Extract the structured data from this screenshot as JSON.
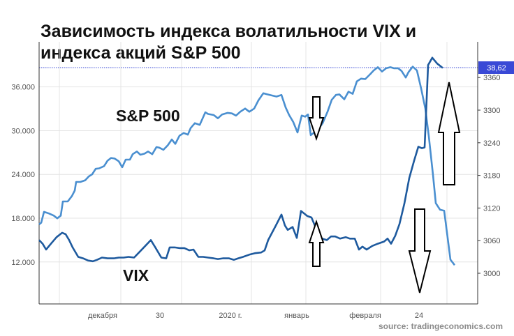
{
  "chart_data": {
    "type": "line",
    "title": "Зависимость индекса волатильности VIX и индекса акций S&P 500",
    "source": "source: tradingeconomics.com",
    "x_tick_labels": [
      "декабря",
      "30",
      "2020 г.",
      "январь",
      "февраля",
      "24"
    ],
    "y_left": {
      "range": [
        7500,
        41000
      ],
      "ticks": [
        "12.000",
        "18.000",
        "24.000",
        "30.000",
        "36.000"
      ]
    },
    "y_right": {
      "range": [
        2954,
        3403
      ],
      "ticks": [
        "3000",
        "3060",
        "3120",
        "3180",
        "3240",
        "3300",
        "3360"
      ]
    },
    "series_labels": {
      "sp500": "S&P 500",
      "vix": "VIX"
    },
    "current_value_label": "38,62",
    "sp500": [
      [
        0,
        3090
      ],
      [
        3,
        3093
      ],
      [
        7,
        3113
      ],
      [
        14,
        3110
      ],
      [
        21,
        3106
      ],
      [
        26,
        3101
      ],
      [
        31,
        3106
      ],
      [
        34,
        3132
      ],
      [
        41,
        3132
      ],
      [
        47,
        3142
      ],
      [
        51,
        3152
      ],
      [
        53,
        3168
      ],
      [
        59,
        3168
      ],
      [
        66,
        3171
      ],
      [
        71,
        3178
      ],
      [
        76,
        3182
      ],
      [
        81,
        3192
      ],
      [
        86,
        3193
      ],
      [
        93,
        3197
      ],
      [
        98,
        3207
      ],
      [
        103,
        3212
      ],
      [
        108,
        3211
      ],
      [
        114,
        3206
      ],
      [
        119,
        3195
      ],
      [
        124,
        3209
      ],
      [
        130,
        3209
      ],
      [
        134,
        3219
      ],
      [
        140,
        3224
      ],
      [
        145,
        3218
      ],
      [
        151,
        3220
      ],
      [
        156,
        3224
      ],
      [
        162,
        3219
      ],
      [
        168,
        3232
      ],
      [
        172,
        3231
      ],
      [
        178,
        3227
      ],
      [
        184,
        3235
      ],
      [
        190,
        3246
      ],
      [
        195,
        3238
      ],
      [
        201,
        3253
      ],
      [
        207,
        3258
      ],
      [
        213,
        3255
      ],
      [
        217,
        3267
      ],
      [
        223,
        3276
      ],
      [
        230,
        3273
      ],
      [
        238,
        3296
      ],
      [
        242,
        3293
      ],
      [
        250,
        3291
      ],
      [
        256,
        3285
      ],
      [
        262,
        3292
      ],
      [
        270,
        3295
      ],
      [
        276,
        3294
      ],
      [
        282,
        3290
      ],
      [
        288,
        3297
      ],
      [
        295,
        3303
      ],
      [
        301,
        3297
      ],
      [
        308,
        3303
      ],
      [
        314,
        3318
      ],
      [
        321,
        3331
      ],
      [
        327,
        3329
      ],
      [
        333,
        3327
      ],
      [
        340,
        3325
      ],
      [
        347,
        3328
      ],
      [
        353,
        3305
      ],
      [
        358,
        3291
      ],
      [
        364,
        3278
      ],
      [
        370,
        3259
      ],
      [
        376,
        3290
      ],
      [
        381,
        3288
      ],
      [
        385,
        3292
      ],
      [
        389,
        3254
      ],
      [
        397,
        3262
      ],
      [
        401,
        3267
      ],
      [
        406,
        3276
      ],
      [
        413,
        3297
      ],
      [
        419,
        3319
      ],
      [
        425,
        3328
      ],
      [
        430,
        3329
      ],
      [
        437,
        3320
      ],
      [
        443,
        3334
      ],
      [
        449,
        3330
      ],
      [
        455,
        3353
      ],
      [
        461,
        3358
      ],
      [
        467,
        3357
      ],
      [
        474,
        3366
      ],
      [
        479,
        3373
      ],
      [
        485,
        3379
      ],
      [
        491,
        3371
      ],
      [
        497,
        3377
      ],
      [
        503,
        3379
      ],
      [
        508,
        3377
      ],
      [
        514,
        3377
      ],
      [
        519,
        3372
      ],
      [
        525,
        3360
      ],
      [
        529,
        3370
      ],
      [
        535,
        3380
      ],
      [
        541,
        3373
      ],
      [
        547,
        3340
      ],
      [
        553,
        3303
      ],
      [
        558,
        3252
      ],
      [
        564,
        3181
      ],
      [
        568,
        3129
      ],
      [
        574,
        3117
      ],
      [
        580,
        3115
      ],
      [
        589,
        3025
      ],
      [
        595,
        3015
      ]
    ],
    "vix": [
      [
        0,
        15.0
      ],
      [
        5,
        14.5
      ],
      [
        10,
        13.7
      ],
      [
        17,
        14.5
      ],
      [
        25,
        15.4
      ],
      [
        33,
        16.0
      ],
      [
        38,
        15.8
      ],
      [
        43,
        15.0
      ],
      [
        48,
        14.0
      ],
      [
        56,
        12.7
      ],
      [
        63,
        12.5
      ],
      [
        70,
        12.2
      ],
      [
        77,
        12.1
      ],
      [
        83,
        12.3
      ],
      [
        90,
        12.6
      ],
      [
        98,
        12.5
      ],
      [
        107,
        12.5
      ],
      [
        114,
        12.6
      ],
      [
        121,
        12.6
      ],
      [
        128,
        12.7
      ],
      [
        136,
        12.6
      ],
      [
        144,
        13.4
      ],
      [
        152,
        14.2
      ],
      [
        160,
        15.0
      ],
      [
        167,
        13.9
      ],
      [
        175,
        12.6
      ],
      [
        182,
        12.5
      ],
      [
        187,
        14.0
      ],
      [
        194,
        14.0
      ],
      [
        201,
        13.9
      ],
      [
        208,
        13.9
      ],
      [
        215,
        13.6
      ],
      [
        221,
        13.7
      ],
      [
        228,
        12.7
      ],
      [
        235,
        12.7
      ],
      [
        242,
        12.6
      ],
      [
        250,
        12.5
      ],
      [
        256,
        12.4
      ],
      [
        263,
        12.5
      ],
      [
        272,
        12.5
      ],
      [
        279,
        12.3
      ],
      [
        285,
        12.5
      ],
      [
        292,
        12.7
      ],
      [
        301,
        13.0
      ],
      [
        309,
        13.2
      ],
      [
        318,
        13.3
      ],
      [
        323,
        13.6
      ],
      [
        328,
        15.0
      ],
      [
        339,
        17.0
      ],
      [
        347,
        18.5
      ],
      [
        352,
        17.0
      ],
      [
        356,
        16.4
      ],
      [
        363,
        16.8
      ],
      [
        369,
        15.3
      ],
      [
        375,
        19.0
      ],
      [
        384,
        18.3
      ],
      [
        390,
        18.1
      ],
      [
        397,
        16.5
      ],
      [
        405,
        15.2
      ],
      [
        412,
        15.0
      ],
      [
        418,
        15.5
      ],
      [
        424,
        15.5
      ],
      [
        431,
        15.2
      ],
      [
        439,
        15.4
      ],
      [
        445,
        15.2
      ],
      [
        452,
        15.2
      ],
      [
        458,
        13.7
      ],
      [
        463,
        14.1
      ],
      [
        469,
        13.7
      ],
      [
        477,
        14.2
      ],
      [
        485,
        14.5
      ],
      [
        494,
        14.8
      ],
      [
        499,
        15.2
      ],
      [
        504,
        14.5
      ],
      [
        510,
        15.6
      ],
      [
        516,
        17.2
      ],
      [
        523,
        20.0
      ],
      [
        530,
        23.5
      ],
      [
        537,
        25.9
      ],
      [
        543,
        27.8
      ],
      [
        548,
        27.6
      ],
      [
        552,
        27.7
      ],
      [
        557,
        39.0
      ],
      [
        563,
        40.0
      ],
      [
        570,
        39.2
      ],
      [
        578,
        38.6
      ]
    ],
    "arrows": [
      "down",
      "up",
      "up",
      "down"
    ]
  }
}
